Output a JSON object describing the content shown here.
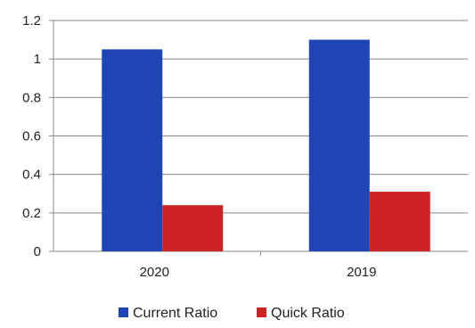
{
  "chart_data": {
    "type": "bar",
    "categories": [
      "2020",
      "2019"
    ],
    "series": [
      {
        "name": "Current Ratio",
        "color": "#1f45b5",
        "values": [
          1.05,
          1.1
        ]
      },
      {
        "name": "Quick Ratio",
        "color": "#cc2424",
        "values": [
          0.24,
          0.31
        ]
      }
    ],
    "ylim": [
      0,
      1.2
    ],
    "yticks": [
      "0",
      "0.2",
      "0.4",
      "0.6",
      "0.8",
      "1",
      "1.2"
    ],
    "grid": true,
    "legend": "bottom-center"
  }
}
